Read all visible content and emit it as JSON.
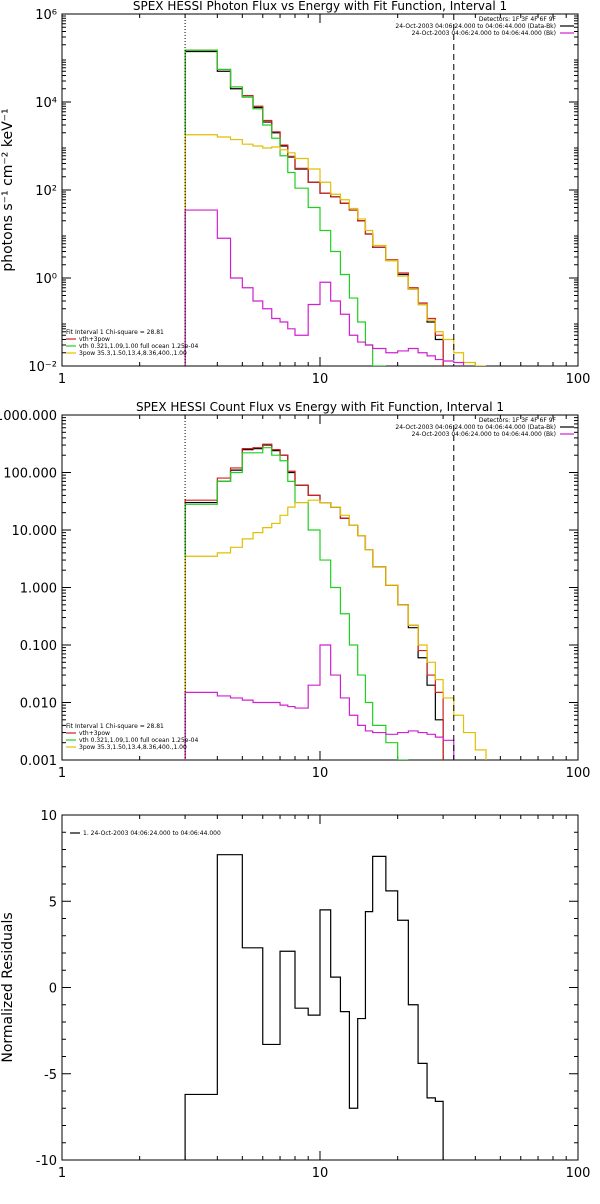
{
  "chart_data": [
    {
      "type": "line",
      "title": "SPEX HESSI Photon Flux vs Energy with Fit Function, Interval 1",
      "ylabel": "photons s⁻¹ cm⁻² keV⁻¹",
      "xlabel": "",
      "xscale": "log",
      "yscale": "log",
      "xlim": [
        1,
        100
      ],
      "ylim": [
        0.01,
        1000000
      ],
      "x_ticks": [
        {
          "v": 1,
          "label": "1"
        },
        {
          "v": 10,
          "label": "10"
        },
        {
          "v": 100,
          "label": "100"
        }
      ],
      "y_ticks": [
        {
          "v": 0.01,
          "label": "10⁻²"
        },
        {
          "v": 1,
          "label": "10⁰"
        },
        {
          "v": 100,
          "label": "10²"
        },
        {
          "v": 10000,
          "label": "10⁴"
        },
        {
          "v": 1000000,
          "label": "10⁶"
        }
      ],
      "vlines": [
        {
          "x": 3,
          "style": "dotted"
        },
        {
          "x": 33,
          "style": "dashed"
        }
      ],
      "legend_right": [
        {
          "text": "Detectors: 1F 3F 4F 6F 9F",
          "color": ""
        },
        {
          "text": "24-Oct-2003 04:06:24.000 to 04:06:44.000 (Data-Bk)",
          "color": "#000000"
        },
        {
          "text": "24-Oct-2003 04:06:24.000 to 04:06:44.000 (Bk)",
          "color": "#d020d0"
        }
      ],
      "legend_left": [
        {
          "text": "Fit Interval 1   Chi-square = 28.81",
          "color": ""
        },
        {
          "text": "vth+3pow",
          "color": "#d02020"
        },
        {
          "text": "vth 0.321,1.09,1.00  full ocean 1.25e-04",
          "color": "#20d020"
        },
        {
          "text": "3pow 35.3,1.50,13.4,8.36,400.,1.00",
          "color": "#e0c000"
        }
      ],
      "edges": [
        3,
        3.5,
        4,
        4.5,
        5,
        5.5,
        6,
        6.5,
        7,
        7.5,
        8,
        9,
        10,
        11,
        12,
        13,
        14,
        15,
        16,
        18,
        20,
        22,
        24,
        26,
        28,
        30,
        33,
        36,
        40,
        44,
        48
      ],
      "series": [
        {
          "name": "Data-Bk",
          "color": "#000000",
          "values": [
            140000,
            140000,
            50000,
            20000,
            13000,
            7500,
            3500,
            2000,
            1000,
            560,
            300,
            150,
            85,
            70,
            50,
            35,
            20,
            10,
            5,
            2.5,
            1.2,
            0.55,
            0.25,
            0.1,
            0.04,
            null,
            null,
            null,
            null,
            null
          ]
        },
        {
          "name": "vth+3pow",
          "color": "#d02020",
          "values": [
            150000,
            150000,
            55000,
            22000,
            14000,
            8000,
            3800,
            2100,
            1050,
            580,
            310,
            150,
            85,
            70,
            50,
            35,
            20,
            10,
            5,
            2.6,
            1.3,
            0.6,
            0.27,
            0.12,
            0.05,
            null,
            null,
            null,
            null,
            null
          ]
        },
        {
          "name": "vth",
          "color": "#20d020",
          "values": [
            150000,
            150000,
            55000,
            22000,
            13000,
            7000,
            3000,
            1500,
            600,
            250,
            110,
            40,
            12,
            4,
            1.2,
            0.35,
            0.1,
            0.03,
            0.01,
            null,
            null,
            null,
            null,
            null,
            null,
            null,
            null,
            null,
            null,
            null
          ]
        },
        {
          "name": "3pow",
          "color": "#e0c000",
          "values": [
            1800,
            1800,
            1600,
            1400,
            1100,
            1000,
            900,
            950,
            820,
            700,
            520,
            300,
            150,
            80,
            60,
            38,
            22,
            12,
            5.5,
            2.5,
            1.1,
            0.55,
            0.25,
            0.11,
            0.06,
            0.04,
            0.02,
            0.012,
            0.01,
            null
          ]
        },
        {
          "name": "Bk",
          "color": "#d020d0",
          "values": [
            35,
            35,
            8,
            1,
            0.6,
            0.3,
            0.2,
            0.12,
            0.1,
            0.07,
            0.05,
            0.25,
            0.8,
            0.3,
            0.15,
            0.05,
            0.035,
            0.03,
            0.025,
            0.02,
            0.022,
            0.025,
            0.02,
            0.017,
            0.014,
            0.013,
            0.012,
            null,
            null,
            null
          ]
        }
      ]
    },
    {
      "type": "line",
      "title": "SPEX HESSI Count Flux vs Energy with Fit Function, Interval 1",
      "ylabel": "",
      "xlabel": "",
      "xscale": "log",
      "yscale": "log",
      "xlim": [
        1,
        100
      ],
      "ylim": [
        0.001,
        1000
      ],
      "x_ticks": [
        {
          "v": 1,
          "label": "1"
        },
        {
          "v": 10,
          "label": "10"
        },
        {
          "v": 100,
          "label": "100"
        }
      ],
      "y_ticks": [
        {
          "v": 0.001,
          "label": "0.001"
        },
        {
          "v": 0.01,
          "label": "0.010"
        },
        {
          "v": 0.1,
          "label": "0.100"
        },
        {
          "v": 1,
          "label": "1.000"
        },
        {
          "v": 10,
          "label": "10.000"
        },
        {
          "v": 100,
          "label": "100.000"
        },
        {
          "v": 1000,
          "label": "1000.000"
        }
      ],
      "vlines": [
        {
          "x": 3,
          "style": "dotted"
        },
        {
          "x": 33,
          "style": "dashed"
        }
      ],
      "legend_right": [
        {
          "text": "Detectors: 1F 3F 4F 6F 9F",
          "color": ""
        },
        {
          "text": "24-Oct-2003 04:06:24.000 to 04:06:44.000 (Data-Bk)",
          "color": "#000000"
        },
        {
          "text": "24-Oct-2003 04:06:24.000 to 04:06:44.000 (Bk)",
          "color": "#d020d0"
        }
      ],
      "legend_left": [
        {
          "text": "Fit Interval 1   Chi-square = 28.81",
          "color": ""
        },
        {
          "text": "vth+3pow",
          "color": "#d02020"
        },
        {
          "text": "vth 0.321,1.09,1.00  full ocean 1.25e-04",
          "color": "#20d020"
        },
        {
          "text": "3pow 35.3,1.50,13.4,8.36,400.,1.00",
          "color": "#e0c000"
        }
      ],
      "edges": [
        3,
        3.5,
        4,
        4.5,
        5,
        5.5,
        6,
        6.5,
        7,
        7.5,
        8,
        9,
        10,
        11,
        12,
        13,
        14,
        15,
        16,
        18,
        20,
        22,
        24,
        26,
        28,
        30,
        33,
        36,
        40,
        44,
        48
      ],
      "series": [
        {
          "name": "Data-Bk",
          "color": "#000000",
          "values": [
            30,
            30,
            70,
            110,
            250,
            260,
            300,
            240,
            200,
            100,
            60,
            40,
            30,
            25,
            16,
            12,
            8,
            4.5,
            2.3,
            1.1,
            0.5,
            0.2,
            0.06,
            0.02,
            0.005,
            null,
            null,
            null,
            null,
            null
          ]
        },
        {
          "name": "vth+3pow",
          "color": "#d02020",
          "values": [
            33,
            33,
            80,
            120,
            260,
            270,
            310,
            250,
            200,
            105,
            60,
            40,
            30,
            25,
            16,
            12,
            8,
            4.5,
            2.3,
            1.1,
            0.5,
            0.22,
            0.08,
            0.03,
            0.015,
            null,
            null,
            null,
            null,
            null
          ]
        },
        {
          "name": "vth",
          "color": "#20d020",
          "values": [
            28,
            28,
            70,
            100,
            220,
            220,
            270,
            200,
            160,
            70,
            30,
            10,
            3,
            1,
            0.35,
            0.1,
            0.03,
            0.01,
            0.004,
            0.002,
            0.001,
            null,
            null,
            null,
            null,
            null,
            null,
            null,
            null,
            null
          ]
        },
        {
          "name": "3pow",
          "color": "#e0c000",
          "values": [
            3.5,
            3.5,
            4,
            5,
            7,
            9,
            11,
            13,
            18,
            25,
            30,
            33,
            30,
            25,
            18,
            12,
            8,
            4.5,
            2.3,
            1.1,
            0.5,
            0.22,
            0.1,
            0.05,
            0.025,
            0.012,
            0.006,
            0.003,
            0.0015,
            null
          ]
        },
        {
          "name": "Bk",
          "color": "#d020d0",
          "values": [
            0.015,
            0.015,
            0.013,
            0.012,
            0.011,
            0.01,
            0.01,
            0.01,
            0.009,
            0.0085,
            0.008,
            0.02,
            0.1,
            0.03,
            0.012,
            0.006,
            0.004,
            0.0032,
            0.003,
            0.0028,
            0.003,
            0.0032,
            0.003,
            0.0028,
            0.0025,
            0.0022,
            null,
            null,
            null,
            null
          ]
        }
      ]
    },
    {
      "type": "line",
      "title": "",
      "ylabel": "Normalized Residuals",
      "xlabel": "",
      "xscale": "log",
      "yscale": "linear",
      "xlim": [
        1,
        100
      ],
      "ylim": [
        -10,
        10
      ],
      "x_ticks": [
        {
          "v": 1,
          "label": "1"
        },
        {
          "v": 10,
          "label": "10"
        },
        {
          "v": 100,
          "label": "100"
        }
      ],
      "y_ticks": [
        {
          "v": -10,
          "label": "-10"
        },
        {
          "v": -5,
          "label": "-5"
        },
        {
          "v": 0,
          "label": "0"
        },
        {
          "v": 5,
          "label": "5"
        },
        {
          "v": 10,
          "label": "10"
        }
      ],
      "vlines": [],
      "legend_right": [],
      "legend_left": [],
      "legend_top": {
        "text": "1. 24-Oct-2003 04:06:24.000 to 04:06:44.000",
        "color": "#000000"
      },
      "edges": [
        3,
        3.5,
        4,
        4.5,
        5,
        5.5,
        6,
        6.5,
        7,
        7.5,
        8,
        9,
        10,
        11,
        12,
        13,
        14,
        15,
        16,
        18,
        20,
        22,
        24,
        26,
        28,
        30,
        33
      ],
      "series": [
        {
          "name": "1. 24-Oct-2003 04:06:24.000 to 04:06:44.000",
          "color": "#000000",
          "values": [
            -6.2,
            -6.2,
            7.7,
            7.7,
            2.3,
            2.3,
            -3.3,
            -3.3,
            2.1,
            2.1,
            -1.2,
            -1.6,
            4.5,
            0.6,
            -1.4,
            -7.0,
            -1.8,
            4.4,
            7.6,
            5.6,
            3.9,
            -1.0,
            -4.4,
            -6.4,
            -6.6,
            null
          ]
        }
      ]
    }
  ]
}
